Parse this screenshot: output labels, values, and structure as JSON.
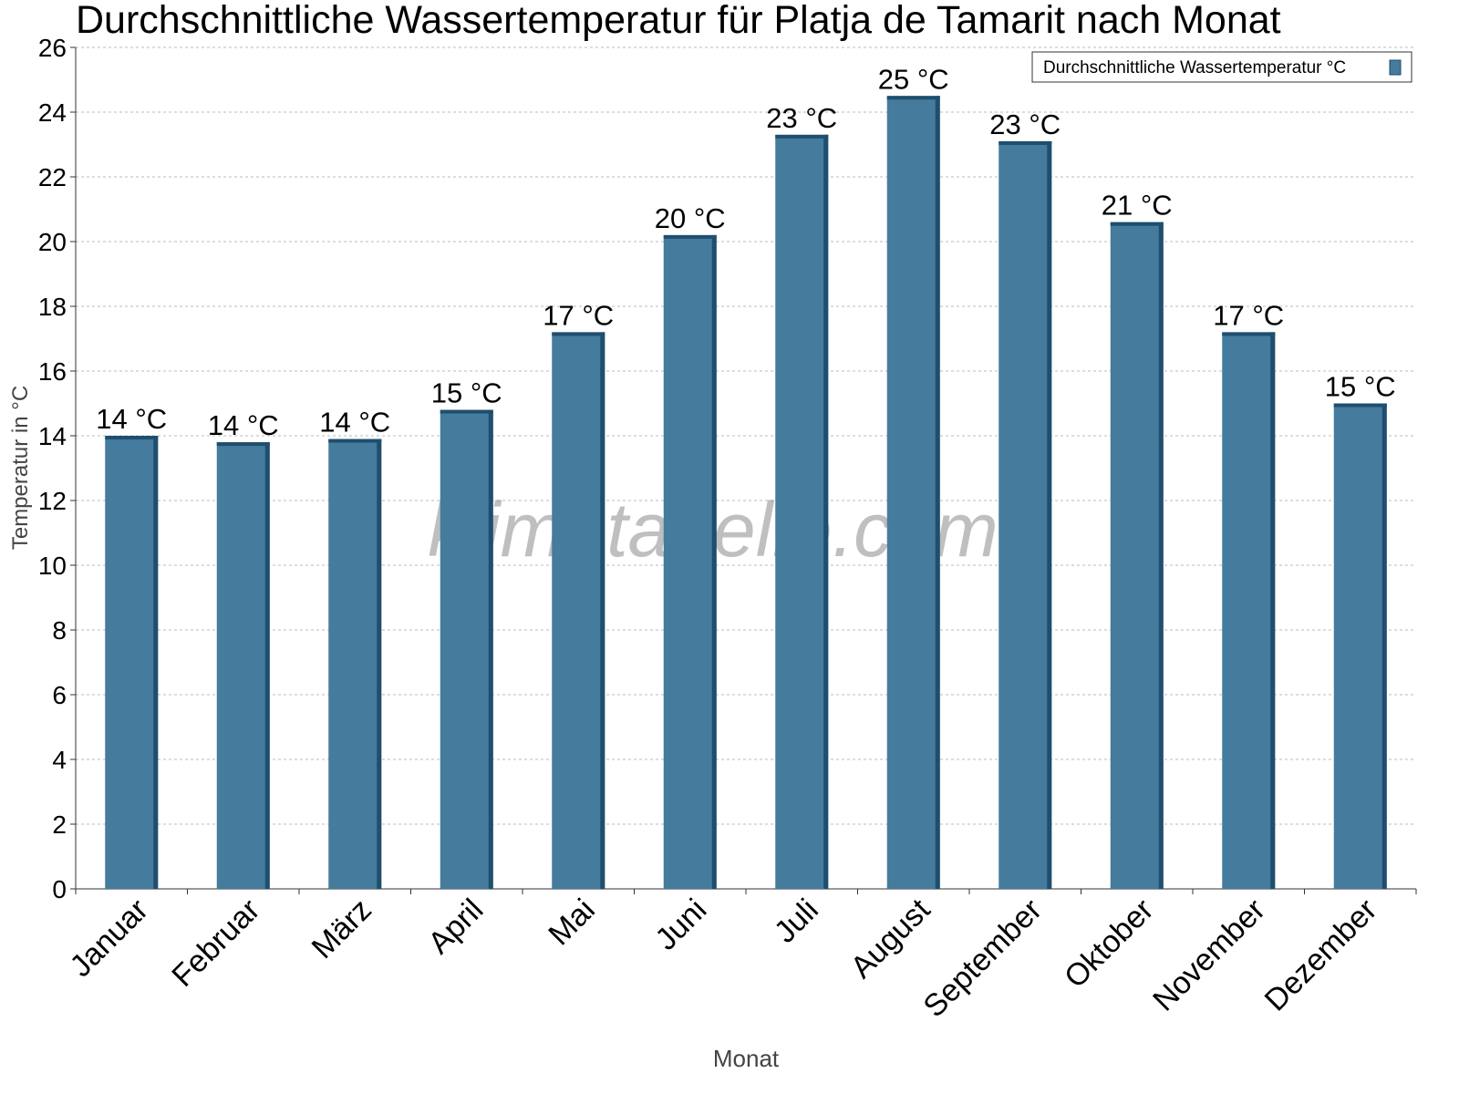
{
  "chart_data": {
    "type": "bar",
    "title": "Durchschnittliche Wassertemperatur für Platja de Tamarit nach Monat",
    "xlabel": "Monat",
    "ylabel": "Temperatur in °C",
    "watermark": "klimatabelle.com",
    "categories": [
      "Januar",
      "Februar",
      "März",
      "April",
      "Mai",
      "Juni",
      "Juli",
      "August",
      "September",
      "Oktober",
      "November",
      "Dezember"
    ],
    "series": [
      {
        "name": "Durchschnittliche Wassertemperatur °C",
        "color": "#457b9d",
        "values": [
          14.0,
          13.8,
          13.9,
          14.8,
          17.2,
          20.2,
          23.3,
          24.5,
          23.1,
          20.6,
          17.2,
          15.0
        ],
        "value_labels": [
          "14 °C",
          "14 °C",
          "14 °C",
          "15 °C",
          "17 °C",
          "20 °C",
          "23 °C",
          "25 °C",
          "23 °C",
          "21 °C",
          "17 °C",
          "15 °C"
        ]
      }
    ],
    "ylim": [
      0,
      26
    ],
    "yticks": [
      0,
      2,
      4,
      6,
      8,
      10,
      12,
      14,
      16,
      18,
      20,
      22,
      24,
      26
    ],
    "grid": true,
    "legend": "top-right"
  }
}
